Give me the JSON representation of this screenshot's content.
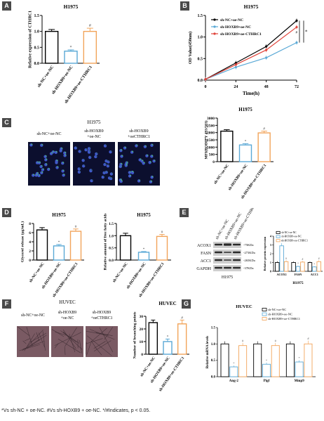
{
  "colors": {
    "black": "#000000",
    "blue": "#5aa9d6",
    "orange": "#f2a45a",
    "red": "#e0433a",
    "wbBand": "#2a2a2a"
  },
  "panels": {
    "A": "A",
    "B": "B",
    "C": "C",
    "D": "D",
    "E": "E",
    "F": "F",
    "G": "G"
  },
  "groups3": [
    "sh-NC+oe-NC",
    "sh-HOXB9+oe-NC",
    "sh-HOXB9+oe-CTHRC1"
  ],
  "chart_data": [
    {
      "id": "A",
      "type": "bar",
      "title": "H1975",
      "ylabel": "Relative expression of CTHRC1",
      "categories": [
        "sh-NC+oe-NC",
        "sh-HOXB9+oe-NC",
        "sh-HOXB9+oe-CTHRC1"
      ],
      "values": [
        1.0,
        0.38,
        1.0
      ],
      "errors": [
        0.06,
        0.04,
        0.1
      ],
      "ylim": [
        0,
        1.5
      ],
      "ticks": [
        "0.0",
        "0.5",
        "1.0",
        "1.5"
      ],
      "marks": [
        "",
        "*",
        "#"
      ]
    },
    {
      "id": "B",
      "type": "line",
      "title": "H1975",
      "xlabel": "Time(h)",
      "ylabel": "OD Value(450nm)",
      "x": [
        0,
        24,
        48,
        72
      ],
      "xticks": [
        "0",
        "24",
        "48",
        "72"
      ],
      "yticks": [
        "0.0",
        "0.5",
        "1.0",
        "1.5"
      ],
      "ylim": [
        0,
        1.5
      ],
      "series": [
        {
          "name": "sh-NC+oe-NC",
          "color": "#000000",
          "values": [
            0.02,
            0.4,
            0.78,
            1.38
          ]
        },
        {
          "name": "sh-HOXB9+oe-NC",
          "color": "#5aa9d6",
          "values": [
            0.02,
            0.3,
            0.52,
            0.87
          ]
        },
        {
          "name": "sh-HOXB9+oe-CTHRC1",
          "color": "#e0433a",
          "values": [
            0.02,
            0.36,
            0.7,
            1.23
          ]
        }
      ],
      "marks": [
        "*",
        "#"
      ]
    },
    {
      "id": "C",
      "type": "bar",
      "title": "H1975",
      "ylabel": "MFI(BODIPY 493/503)",
      "categories": [
        "sh-NC+oe-NC",
        "sh-HOXB9+oe-NC",
        "sh-HOXB9+oe-CTHRC1"
      ],
      "values": [
        2100,
        1150,
        1980
      ],
      "errors": [
        100,
        90,
        120
      ],
      "ylim": [
        0,
        3000
      ],
      "ticks": [
        "0",
        "500",
        "1000",
        "1500",
        "2000",
        "2500",
        "3000"
      ],
      "marks": [
        "",
        "*",
        "#"
      ]
    },
    {
      "id": "D1",
      "type": "bar",
      "title": "H1975",
      "ylabel": "Glycerol release (μg/mL)",
      "categories": [
        "sh-NC+oe-NC",
        "sh-HOXB9+oe-NC",
        "sh-HOXB9+oe-CTHRC1"
      ],
      "values": [
        6.6,
        3.1,
        6.3
      ],
      "errors": [
        0.5,
        0.3,
        0.5
      ],
      "ylim": [
        0,
        8
      ],
      "ticks": [
        "0",
        "2",
        "4",
        "6",
        "8"
      ],
      "marks": [
        "",
        "*",
        "#"
      ]
    },
    {
      "id": "D2",
      "type": "bar",
      "title": "H1975",
      "ylabel": "Relative amount of free fatty acids",
      "categories": [
        "sh-NC+oe-NC",
        "sh-HOXB9+oe-NC",
        "sh-HOXB9+oe-CTHRC1"
      ],
      "values": [
        1.0,
        0.32,
        0.97
      ],
      "errors": [
        0.1,
        0.03,
        0.08
      ],
      "ylim": [
        0,
        1.5
      ],
      "ticks": [
        "0.0",
        "0.5",
        "1.0",
        "1.5"
      ],
      "marks": [
        "",
        "*",
        "#"
      ]
    },
    {
      "id": "E",
      "type": "bar",
      "title": "H1975",
      "ylabel": "Relative protein expression",
      "categories": [
        "ACOX1",
        "FASN",
        "ACC1"
      ],
      "legend": [
        "sh-NC+oe-NC",
        "sh-HOXB9+oe-NC",
        "sh-HOXB9+oe-CTHRC1"
      ],
      "series": [
        {
          "name": "sh-NC+oe-NC",
          "color": "#000000",
          "values": [
            1.0,
            1.0,
            1.0
          ],
          "errors": [
            0.15,
            0.12,
            0.12
          ]
        },
        {
          "name": "sh-HOXB9+oe-NC",
          "color": "#5aa9d6",
          "values": [
            2.9,
            0.55,
            0.5
          ],
          "errors": [
            0.3,
            0.08,
            0.08
          ]
        },
        {
          "name": "sh-HOXB9+oe-CTHRC1",
          "color": "#f2a45a",
          "values": [
            1.1,
            1.05,
            1.1
          ],
          "errors": [
            0.15,
            0.12,
            0.15
          ]
        }
      ],
      "ylim": [
        0,
        4
      ],
      "ticks": [
        "0",
        "1",
        "2",
        "3",
        "4"
      ]
    },
    {
      "id": "F",
      "type": "bar",
      "title": "HUVEC",
      "ylabel": "Number of branching points",
      "categories": [
        "sh-NC+oe-NC",
        "sh-HOXB9+oe-NC",
        "sh-HOXB9+oe-CTHRC1"
      ],
      "values": [
        25,
        10,
        24
      ],
      "errors": [
        2,
        2,
        3
      ],
      "ylim": [
        0,
        30
      ],
      "ticks": [
        "0",
        "10",
        "20",
        "30"
      ],
      "marks": [
        "",
        "*",
        "#"
      ]
    },
    {
      "id": "G",
      "type": "bar",
      "title": "HUVEC",
      "ylabel": "Relative mRNA levels",
      "categories": [
        "Ang-2",
        "Pigf",
        "Mmp9"
      ],
      "legend": [
        "sh-NC+oe-NC",
        "sh-HOXB9+oe-NC",
        "sh-HOXB9+oe-CTHRC1"
      ],
      "series": [
        {
          "name": "sh-NC+oe-NC",
          "color": "#000000",
          "values": [
            1.0,
            1.0,
            1.0
          ],
          "errors": [
            0.08,
            0.08,
            0.08
          ]
        },
        {
          "name": "sh-HOXB9+oe-NC",
          "color": "#5aa9d6",
          "values": [
            0.3,
            0.38,
            0.45
          ],
          "errors": [
            0.04,
            0.05,
            0.05
          ]
        },
        {
          "name": "sh-HOXB9+oe-CTHRC1",
          "color": "#f2a45a",
          "values": [
            0.95,
            0.95,
            1.0
          ],
          "errors": [
            0.08,
            0.08,
            0.1
          ]
        }
      ],
      "ylim": [
        0,
        1.5
      ],
      "ticks": [
        "0.0",
        "0.5",
        "1.0",
        "1.5"
      ]
    }
  ],
  "micro": {
    "C": {
      "title": "H1975",
      "labels": [
        "sh-NC+oe-NC",
        "sh-HOXB9\n+oe-NC",
        "sh-HOXB9\n+oeCTHRC1"
      ]
    },
    "F": {
      "title": "HUVEC",
      "labels": [
        "sh-NC+oe-NC",
        "sh-HOXB9\n+oe-NC",
        "sh-HOXB9\n+oeCTHRC1"
      ]
    }
  },
  "western": {
    "lanes": [
      "sh-NC+oe-NC",
      "sh-HOXB9+oe-NC",
      "sh-HOXB9+oe-CTHRC1"
    ],
    "proteins": [
      "ACOX1",
      "FASN",
      "ACC1",
      "GAPDH"
    ],
    "sizes": [
      "-75KDa",
      "-273KDa",
      "-265KDa",
      "-37KDa"
    ],
    "cell": "H1975"
  },
  "caption": "*Vs sh-NC + oe-NC. #Vs sh-HOXB9 + oe-NC. */#Indicates, p < 0.05."
}
